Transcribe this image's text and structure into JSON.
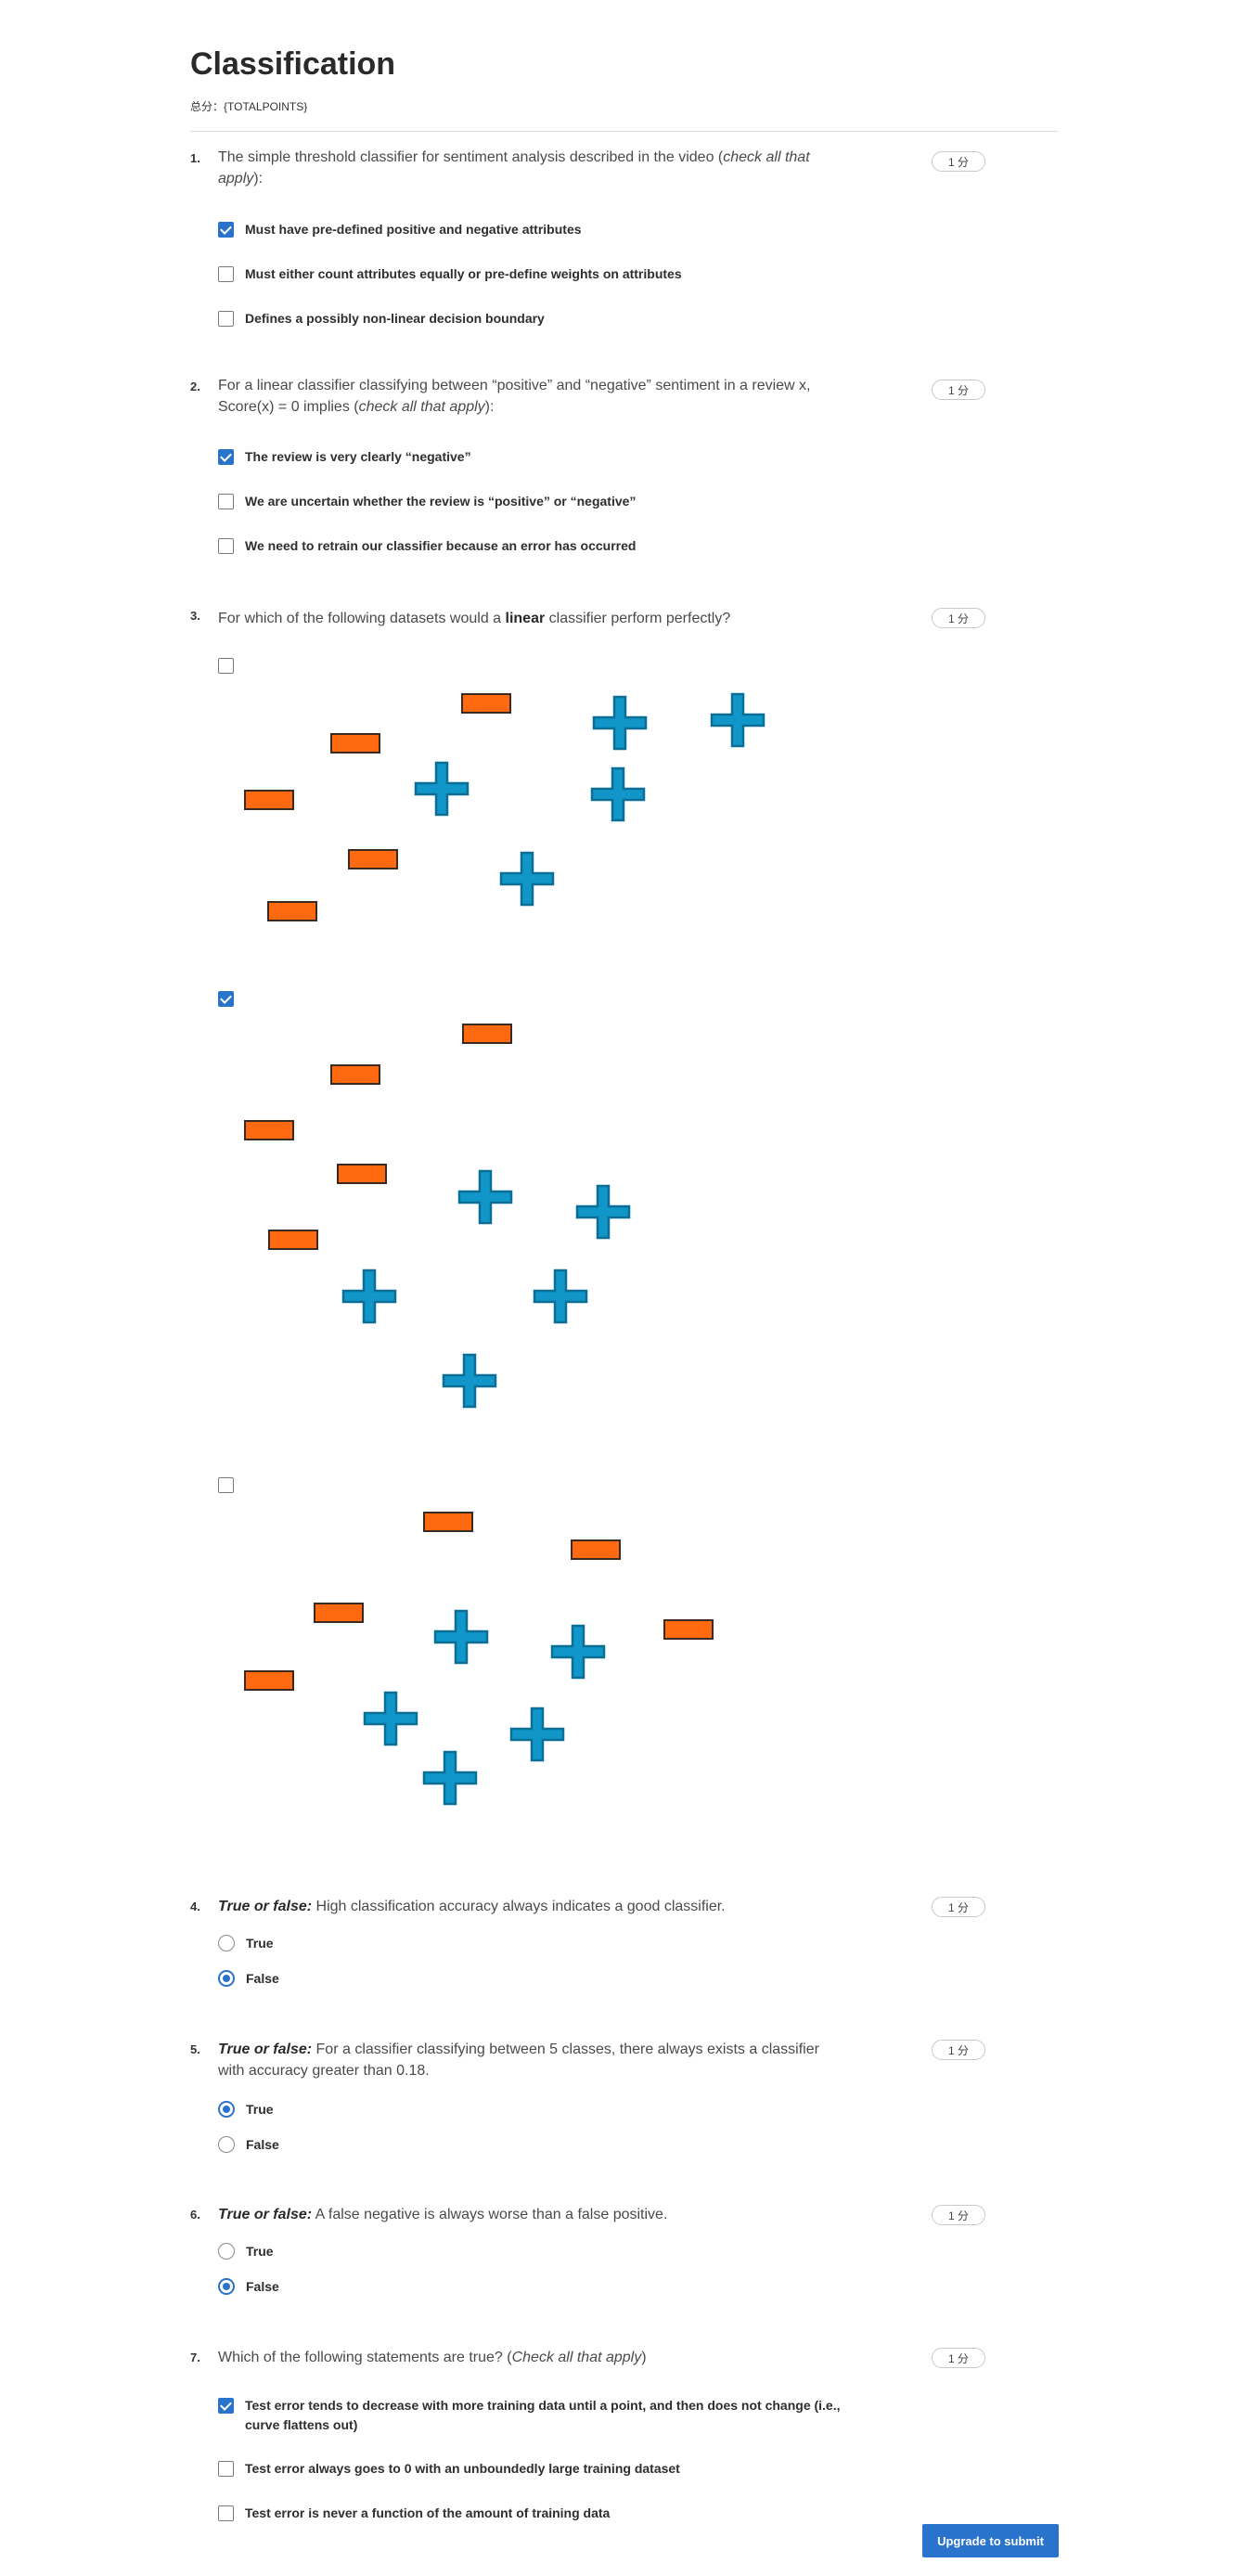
{
  "title": "Classification",
  "total_points_label": "总分：{TOTALPOINTS}",
  "submit_label": "Upgrade to submit",
  "questions": [
    {
      "num": "1.",
      "points": "1 分",
      "text_parts": [
        {
          "t": "The simple threshold classifier for sentiment analysis described in the video (",
          "s": ""
        },
        {
          "t": "check all that apply",
          "s": "em"
        },
        {
          "t": "):",
          "s": ""
        }
      ],
      "options": [
        {
          "label": "Must have pre-defined positive and negative attributes",
          "checked": true
        },
        {
          "label": "Must either count attributes equally or pre-define weights on attributes",
          "checked": false
        },
        {
          "label": "Defines a possibly non-linear decision boundary",
          "checked": false
        }
      ]
    },
    {
      "num": "2.",
      "points": "1 分",
      "text_parts": [
        {
          "t": "For a linear classifier classifying between “positive” and “negative” sentiment in a review x, Score(x) = 0 implies (",
          "s": ""
        },
        {
          "t": "check all that apply",
          "s": "em"
        },
        {
          "t": "):",
          "s": ""
        }
      ],
      "options": [
        {
          "label": "The review is very clearly “negative”",
          "checked": true
        },
        {
          "label": "We are uncertain whether the review is “positive” or “negative”",
          "checked": false
        },
        {
          "label": "We need to retrain our classifier because an error has occurred",
          "checked": false
        }
      ]
    },
    {
      "num": "3.",
      "points": "1 分",
      "text_parts": [
        {
          "t": "For which of the following datasets would a ",
          "s": ""
        },
        {
          "t": "linear",
          "s": "b"
        },
        {
          "t": " classifier perform perfectly?",
          "s": ""
        }
      ],
      "options": [
        {
          "label": "",
          "checked": false
        },
        {
          "label": "",
          "checked": true
        },
        {
          "label": "",
          "checked": false
        }
      ]
    },
    {
      "num": "4.",
      "points": "1 分",
      "text_parts": [
        {
          "t": "True or false:",
          "s": "bem"
        },
        {
          "t": " High classification accuracy always indicates a good classifier.",
          "s": ""
        }
      ],
      "options": [
        {
          "label": "True",
          "checked": false
        },
        {
          "label": "False",
          "checked": true
        }
      ]
    },
    {
      "num": "5.",
      "points": "1 分",
      "text_parts": [
        {
          "t": "True or false:",
          "s": "bem"
        },
        {
          "t": " For a classifier classifying between 5 classes, there always exists a classifier with accuracy greater than 0.18.",
          "s": ""
        }
      ],
      "options": [
        {
          "label": "True",
          "checked": true
        },
        {
          "label": "False",
          "checked": false
        }
      ]
    },
    {
      "num": "6.",
      "points": "1 分",
      "text_parts": [
        {
          "t": "True or false:",
          "s": "bem"
        },
        {
          "t": " A false negative is always worse than a false positive.",
          "s": ""
        }
      ],
      "options": [
        {
          "label": "True",
          "checked": false
        },
        {
          "label": "False",
          "checked": true
        }
      ]
    },
    {
      "num": "7.",
      "points": "1 分",
      "text_parts": [
        {
          "t": "Which of the following statements are true? (",
          "s": ""
        },
        {
          "t": "Check all that apply",
          "s": "em"
        },
        {
          "t": ")",
          "s": ""
        }
      ],
      "options": [
        {
          "label": "Test error tends to decrease with more training data until a point, and then does not change (i.e., curve flattens out)",
          "checked": true
        },
        {
          "label": "Test error always goes to 0 with an unboundedly large training dataset",
          "checked": false
        },
        {
          "label": "Test error is never a function of the amount of training data",
          "checked": false
        }
      ]
    }
  ],
  "colors": {
    "accent": "#2a73cc",
    "minus_fill": "#ff6a10",
    "plus_fill": "#1196c9"
  },
  "datasets_icons": [
    "minus-marker-icon",
    "plus-marker-icon"
  ]
}
